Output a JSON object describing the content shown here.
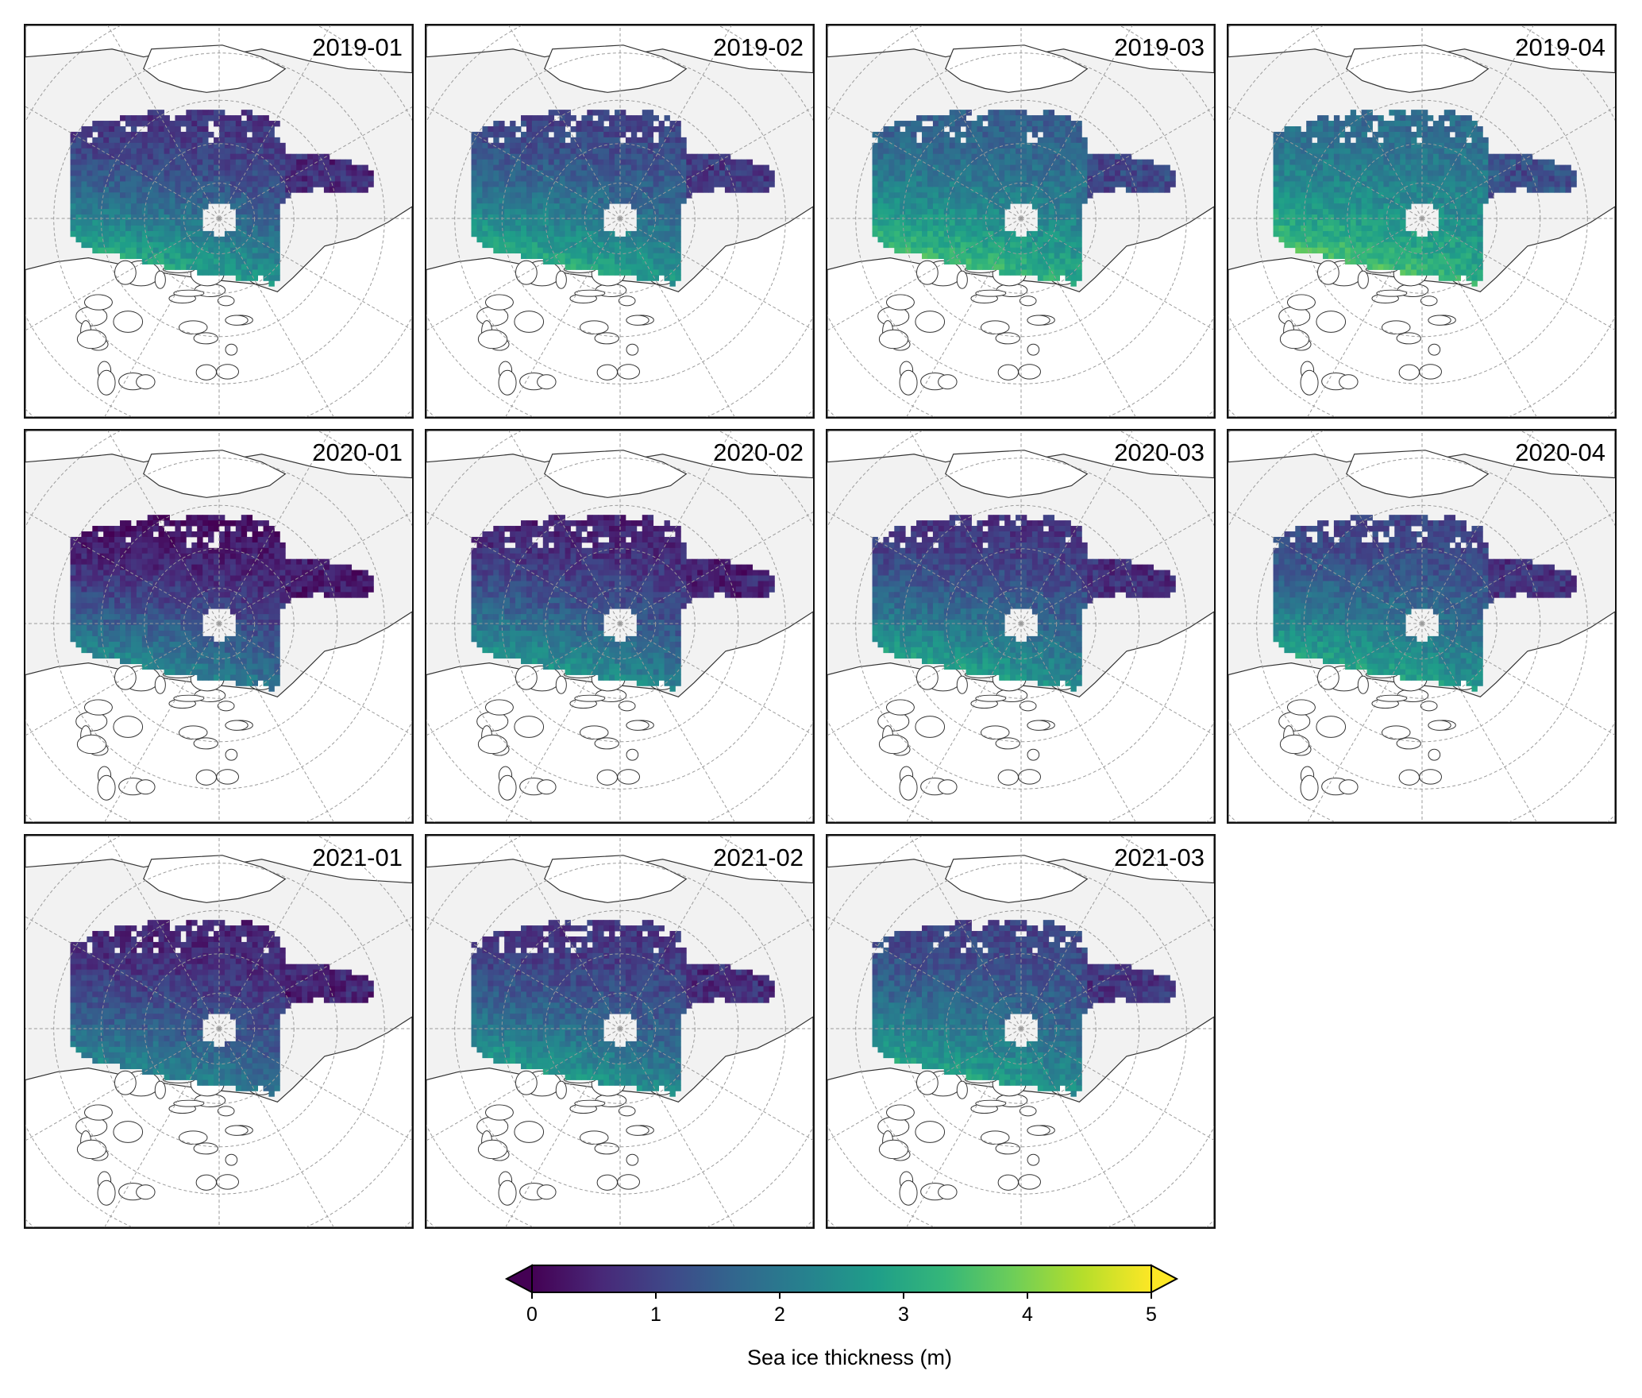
{
  "panels": [
    {
      "label": "2019-01",
      "row": 0,
      "col": 0,
      "thin": 0.15,
      "thick": 0.85
    },
    {
      "label": "2019-02",
      "row": 0,
      "col": 1,
      "thin": 0.2,
      "thick": 0.85
    },
    {
      "label": "2019-03",
      "row": 0,
      "col": 2,
      "thin": 0.3,
      "thick": 0.9
    },
    {
      "label": "2019-04",
      "row": 0,
      "col": 3,
      "thin": 0.35,
      "thick": 0.9
    },
    {
      "label": "2020-01",
      "row": 1,
      "col": 0,
      "thin": 0.05,
      "thick": 0.7
    },
    {
      "label": "2020-02",
      "row": 1,
      "col": 1,
      "thin": 0.1,
      "thick": 0.75
    },
    {
      "label": "2020-03",
      "row": 1,
      "col": 2,
      "thin": 0.15,
      "thick": 0.8
    },
    {
      "label": "2020-04",
      "row": 1,
      "col": 3,
      "thin": 0.2,
      "thick": 0.8
    },
    {
      "label": "2021-01",
      "row": 2,
      "col": 0,
      "thin": 0.1,
      "thick": 0.65
    },
    {
      "label": "2021-02",
      "row": 2,
      "col": 1,
      "thin": 0.15,
      "thick": 0.75
    },
    {
      "label": "2021-03",
      "row": 2,
      "col": 2,
      "thin": 0.2,
      "thick": 0.78
    }
  ],
  "colorbar": {
    "title": "Sea ice thickness (m)",
    "min": 0,
    "max": 5,
    "ticks": [
      "0",
      "1",
      "2",
      "3",
      "4",
      "5"
    ],
    "colormap": [
      "#440154",
      "#482878",
      "#3e4989",
      "#31688e",
      "#26828e",
      "#1f9e89",
      "#35b779",
      "#6ece58",
      "#b5de2b",
      "#fde725"
    ],
    "extend": "both"
  },
  "colors": {
    "land": "#ffffff",
    "ocean": "#f2f2f2",
    "coastline": "#333333",
    "gridline": "#9a9a9a"
  }
}
